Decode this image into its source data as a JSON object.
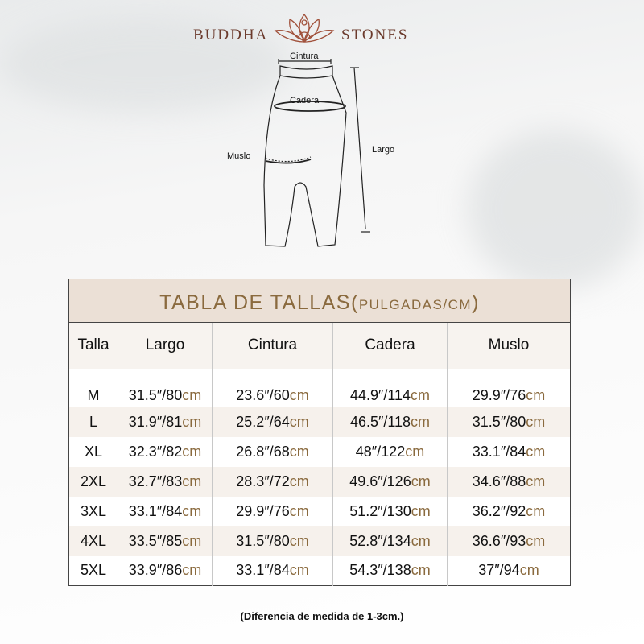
{
  "brand": {
    "left": "BUDDHA",
    "right": "STONES"
  },
  "diagram": {
    "waist": "Cintura",
    "hip": "Cadera",
    "thigh": "Muslo",
    "length": "Largo"
  },
  "table": {
    "title": "TABLA DE TALLAS(",
    "title_units": "PULGADAS/CM",
    "title_close": ")",
    "unit": "cm",
    "headers": [
      "Talla",
      "Largo",
      "Cintura",
      "Cadera",
      "Muslo"
    ],
    "rows": [
      {
        "size": "M",
        "values": [
          "31.5″/80",
          "23.6″/60",
          "44.9″/114",
          "29.9″/76"
        ]
      },
      {
        "size": "L",
        "values": [
          "31.9″/81",
          "25.2″/64",
          "46.5″/118",
          "31.5″/80"
        ]
      },
      {
        "size": "XL",
        "values": [
          "32.3″/82",
          "26.8″/68",
          "48″/122",
          "33.1″/84"
        ]
      },
      {
        "size": "2XL",
        "values": [
          "32.7″/83",
          "28.3″/72",
          "49.6″/126",
          "34.6″/88"
        ]
      },
      {
        "size": "3XL",
        "values": [
          "33.1″/84",
          "29.9″/76",
          "51.2″/130",
          "36.2″/92"
        ]
      },
      {
        "size": "4XL",
        "values": [
          "33.5″/85",
          "31.5″/80",
          "52.8″/134",
          "36.6″/93"
        ]
      },
      {
        "size": "5XL",
        "values": [
          "33.9″/86",
          "33.1″/84",
          "54.3″/138",
          "37″/94"
        ]
      }
    ]
  },
  "note": "(Diferencia de medida de 1-3cm.)",
  "colors": {
    "accent": "#8a6a3e",
    "title_bg": "#ebe0d6",
    "brand": "#6b3a2c"
  }
}
